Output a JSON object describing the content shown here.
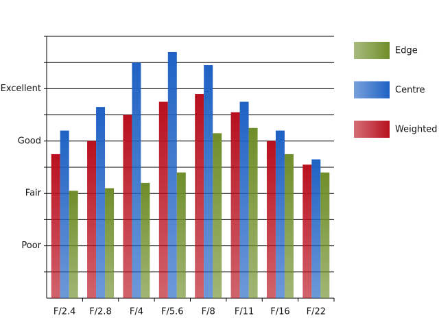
{
  "chart_data": {
    "type": "bar",
    "categories": [
      "F/2.4",
      "F/2.8",
      "F/4",
      "F/5.6",
      "F/8",
      "F/11",
      "F/16",
      "F/22"
    ],
    "series": [
      {
        "name": "Weighted",
        "color": "#b8101e",
        "values": [
          5.5,
          6.0,
          7.0,
          7.5,
          7.8,
          7.1,
          6.0,
          5.1
        ]
      },
      {
        "name": "Centre",
        "color": "#1f62c4",
        "values": [
          6.4,
          7.3,
          9.0,
          9.4,
          8.9,
          7.5,
          6.4,
          5.3
        ]
      },
      {
        "name": "Edge",
        "color": "#6f8e2a",
        "values": [
          4.1,
          4.2,
          4.4,
          4.8,
          6.3,
          6.5,
          5.5,
          4.8
        ]
      }
    ],
    "ylim": [
      0,
      10
    ],
    "yticks": [
      {
        "value": 2,
        "label": "Poor"
      },
      {
        "value": 4,
        "label": "Fair"
      },
      {
        "value": 6,
        "label": "Good"
      },
      {
        "value": 8,
        "label": "Excellent"
      }
    ],
    "minor_yticks": [
      1,
      3,
      5,
      7,
      9,
      10
    ],
    "grid": true
  }
}
